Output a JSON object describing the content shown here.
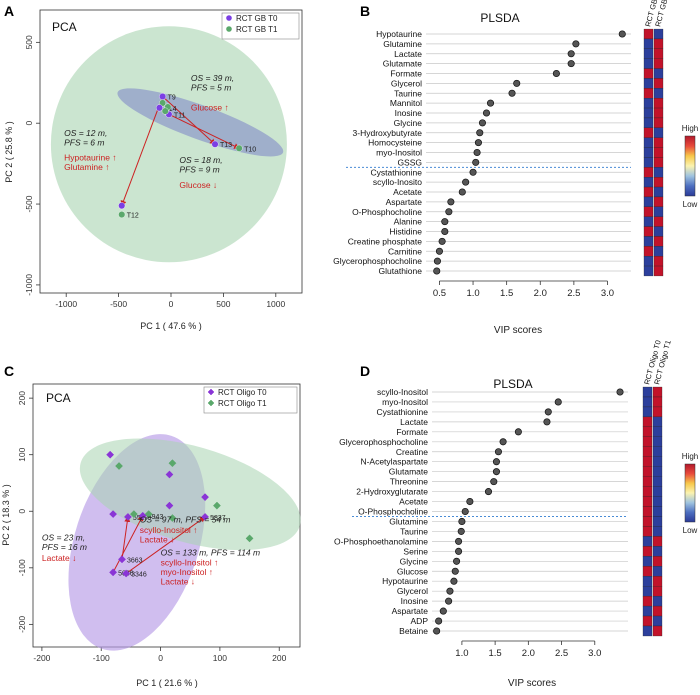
{
  "chart_data": [
    {
      "panel": "A",
      "type": "scatter",
      "title": "PCA",
      "xlabel": "PC 1 ( 47.6 % )",
      "ylabel": "PC 2 ( 25.8 % )",
      "xlim": [
        -1250,
        1250
      ],
      "ylim": [
        -1050,
        700
      ],
      "xticks": [
        -1000,
        -500,
        0,
        500,
        1000
      ],
      "yticks": [
        -1000,
        -500,
        0,
        500
      ],
      "grid": false,
      "legend_position": "top-right",
      "series": [
        {
          "name": "RCT GB T0",
          "color": "#7b3fe4",
          "marker": "circle"
        },
        {
          "name": "RCT GB T1",
          "color": "#5aa86b",
          "marker": "circle"
        }
      ],
      "points": [
        {
          "label": "T9",
          "x": -80,
          "y": 165,
          "series": 0
        },
        {
          "label": "",
          "x": -80,
          "y": 125,
          "series": 1
        },
        {
          "label": "T14",
          "x": -110,
          "y": 95,
          "series": 0
        },
        {
          "label": "",
          "x": -30,
          "y": 100,
          "series": 1
        },
        {
          "label": "T11",
          "x": -20,
          "y": 55,
          "series": 0
        },
        {
          "label": "",
          "x": -55,
          "y": 75,
          "series": 1
        },
        {
          "label": "T13",
          "x": 420,
          "y": -130,
          "series": 0
        },
        {
          "label": "T10",
          "x": 650,
          "y": -155,
          "series": 1
        },
        {
          "label": "",
          "x": -470,
          "y": -510,
          "series": 0
        },
        {
          "label": "T12",
          "x": -470,
          "y": -565,
          "series": 1
        }
      ],
      "arrows": [
        {
          "from": [
            -80,
            165
          ],
          "to": [
            420,
            -130
          ]
        },
        {
          "from": [
            -80,
            165
          ],
          "to": [
            -470,
            -510
          ]
        },
        {
          "from": [
            -20,
            55
          ],
          "to": [
            650,
            -155
          ]
        }
      ],
      "annotations": [
        {
          "lines": [
            "OS = 39 m,",
            "PFS = 5 m"
          ],
          "x": 190,
          "y": 260,
          "color": "#222222",
          "italic": true
        },
        {
          "lines": [
            "Glucose ↑"
          ],
          "x": 190,
          "y": 80,
          "color": "#cc2222",
          "italic": false
        },
        {
          "lines": [
            "OS = 12 m,",
            "PFS = 6 m"
          ],
          "x": -1020,
          "y": -80,
          "color": "#222222",
          "italic": true
        },
        {
          "lines": [
            "Hypotaurine ↑",
            "Glutamine ↑"
          ],
          "x": -1020,
          "y": -230,
          "color": "#cc2222",
          "italic": false
        },
        {
          "lines": [
            "OS = 18 m,",
            "PFS = 9 m"
          ],
          "x": 80,
          "y": -245,
          "color": "#222222",
          "italic": true
        },
        {
          "lines": [
            "Glucose ↓"
          ],
          "x": 80,
          "y": -400,
          "color": "#cc2222",
          "italic": false
        }
      ]
    },
    {
      "panel": "B",
      "type": "dot",
      "title": "PLSDA",
      "xlabel": "VIP scores",
      "xlim": [
        0.3,
        3.35
      ],
      "xticks": [
        0.5,
        1.0,
        1.5,
        2.0,
        2.5,
        3.0
      ],
      "threshold_after_index": 14,
      "categories": [
        "Hypotaurine",
        "Glutamine",
        "Lactate",
        "Glutamate",
        "Formate",
        "Glycerol",
        "Taurine",
        "Mannitol",
        "Inosine",
        "Glycine",
        "3-Hydroxybutyrate",
        "Homocysteine",
        "myo-Inositol",
        "GSSG",
        "Cystathionine",
        "scyllo-Inosito",
        "Acetate",
        "Aspartate",
        "O-Phosphocholine",
        "Alanine",
        "Histidine",
        "Creatine phosphate",
        "Carnitine",
        "Glycerophosphocholine",
        "Glutathione"
      ],
      "values": [
        3.22,
        2.53,
        2.46,
        2.46,
        2.24,
        1.65,
        1.58,
        1.26,
        1.2,
        1.14,
        1.1,
        1.08,
        1.06,
        1.04,
        1.0,
        0.89,
        0.84,
        0.67,
        0.64,
        0.58,
        0.58,
        0.54,
        0.5,
        0.47,
        0.46
      ],
      "heatmap_columns": [
        "RCT GB T0",
        "RCT GB T1"
      ],
      "heatmap_high": [
        true,
        false,
        false,
        false,
        true,
        false,
        true,
        false,
        false,
        false,
        true,
        false,
        false,
        false,
        true,
        false,
        true,
        false,
        true,
        false,
        true,
        false,
        true,
        false,
        false
      ],
      "colorbar_labels": [
        "High",
        "Low"
      ],
      "colorscale": [
        "#b2182b",
        "#e84a3b",
        "#f7c84a",
        "#fbf3b0",
        "#9fc3df",
        "#4d6fc0",
        "#2a3a98"
      ]
    },
    {
      "panel": "C",
      "type": "scatter",
      "title": "PCA",
      "xlabel": "PC 1 ( 21.6 % )",
      "ylabel": "PC 2 ( 18.3 % )",
      "xlim": [
        -215,
        235
      ],
      "ylim": [
        -240,
        225
      ],
      "xticks": [
        -200,
        -100,
        0,
        100,
        200
      ],
      "yticks": [
        -200,
        -100,
        0,
        100,
        200
      ],
      "grid": false,
      "legend_position": "top-right",
      "series": [
        {
          "name": "RCT Oligo T0",
          "color": "#8a35d6",
          "marker": "diamond"
        },
        {
          "name": "RCT Oligo T1",
          "color": "#5aa86b",
          "marker": "diamond"
        }
      ],
      "points": [
        {
          "label": "",
          "x": -85,
          "y": 100,
          "series": 0
        },
        {
          "label": "",
          "x": -70,
          "y": 80,
          "series": 1
        },
        {
          "label": "",
          "x": 15,
          "y": 65,
          "series": 0
        },
        {
          "label": "",
          "x": 20,
          "y": 85,
          "series": 1
        },
        {
          "label": "",
          "x": 75,
          "y": 25,
          "series": 0
        },
        {
          "label": "",
          "x": 95,
          "y": 10,
          "series": 1
        },
        {
          "label": "",
          "x": 150,
          "y": -48,
          "series": 1
        },
        {
          "label": "",
          "x": -80,
          "y": -5,
          "series": 0
        },
        {
          "label": "5527",
          "x": -55,
          "y": -10,
          "series": 0
        },
        {
          "label": "",
          "x": -45,
          "y": -5,
          "series": 1
        },
        {
          "label": "4943",
          "x": -30,
          "y": -8,
          "series": 0
        },
        {
          "label": "",
          "x": -20,
          "y": -5,
          "series": 1
        },
        {
          "label": "",
          "x": 15,
          "y": 10,
          "series": 0
        },
        {
          "label": "",
          "x": 20,
          "y": -12,
          "series": 1
        },
        {
          "label": "5837",
          "x": 75,
          "y": -10,
          "series": 0
        },
        {
          "label": "3663",
          "x": -65,
          "y": -85,
          "series": 0
        },
        {
          "label": "5086",
          "x": -80,
          "y": -108,
          "series": 0
        },
        {
          "label": "3346",
          "x": -58,
          "y": -110,
          "series": 0
        }
      ],
      "arrows": [
        {
          "from": [
            -65,
            -85
          ],
          "to": [
            -55,
            -10
          ]
        },
        {
          "from": [
            -80,
            -108
          ],
          "to": [
            -30,
            -8
          ]
        },
        {
          "from": [
            -58,
            -110
          ],
          "to": [
            75,
            -10
          ]
        }
      ],
      "annotations": [
        {
          "lines": [
            "OS = 97 m, PFS = 54 m"
          ],
          "x": -35,
          "y": -20,
          "color": "#222222",
          "italic": true
        },
        {
          "lines": [
            "scyllo-Inositol ↑",
            "Lactate ↓"
          ],
          "x": -35,
          "y": -38,
          "color": "#cc2222",
          "italic": false
        },
        {
          "lines": [
            "OS = 23 m,",
            "PFS = 16 m"
          ],
          "x": -200,
          "y": -52,
          "color": "#222222",
          "italic": true
        },
        {
          "lines": [
            "Lactate ↓"
          ],
          "x": -200,
          "y": -88,
          "color": "#cc2222",
          "italic": false
        },
        {
          "lines": [
            "OS = 133 m, PFS = 114 m"
          ],
          "x": 0,
          "y": -78,
          "color": "#222222",
          "italic": true
        },
        {
          "lines": [
            "scyllo-Inositol ↑",
            "myo-Inositol ↑",
            "Lactate ↓"
          ],
          "x": 0,
          "y": -96,
          "color": "#cc2222",
          "italic": false
        }
      ]
    },
    {
      "panel": "D",
      "type": "dot",
      "title": "PLSDA",
      "xlabel": "VIP scores",
      "xlim": [
        0.55,
        3.5
      ],
      "xticks": [
        1.0,
        1.5,
        2.0,
        2.5,
        3.0
      ],
      "threshold_after_index": 13,
      "categories": [
        "scyllo-Inositol",
        "myo-Inositol",
        "Cystathionine",
        "Lactate",
        "Formate",
        "Glycerophosphocholine",
        "Creatine",
        "N-Acetylaspartate",
        "Glutamate",
        "Threonine",
        "2-Hydroxyglutarate",
        "Acetate",
        "O-Phosphocholine",
        "Glutamine",
        "Taurine",
        "O-Phosphoethanolamine",
        "Serine",
        "Glycine",
        "Glucose",
        "Hypotaurine",
        "Glycerol",
        "Inosine",
        "Aspartate",
        "ADP",
        "Betaine"
      ],
      "values": [
        3.38,
        2.45,
        2.3,
        2.28,
        1.85,
        1.62,
        1.55,
        1.52,
        1.52,
        1.48,
        1.4,
        1.12,
        1.05,
        1.0,
        0.99,
        0.95,
        0.95,
        0.92,
        0.9,
        0.88,
        0.82,
        0.8,
        0.72,
        0.65,
        0.62
      ],
      "heatmap_columns": [
        "RCT Oligo T0",
        "RCT Oligo T1"
      ],
      "heatmap_high": [
        false,
        false,
        false,
        true,
        true,
        true,
        true,
        true,
        true,
        true,
        true,
        true,
        true,
        true,
        true,
        false,
        true,
        false,
        true,
        false,
        false,
        true,
        false,
        true,
        false
      ],
      "colorbar_labels": [
        "High",
        "Low"
      ],
      "colorscale": [
        "#b2182b",
        "#e84a3b",
        "#f7c84a",
        "#fbf3b0",
        "#9fc3df",
        "#4d6fc0",
        "#2a3a98"
      ]
    }
  ],
  "panel_letters": [
    "A",
    "B",
    "C",
    "D"
  ]
}
